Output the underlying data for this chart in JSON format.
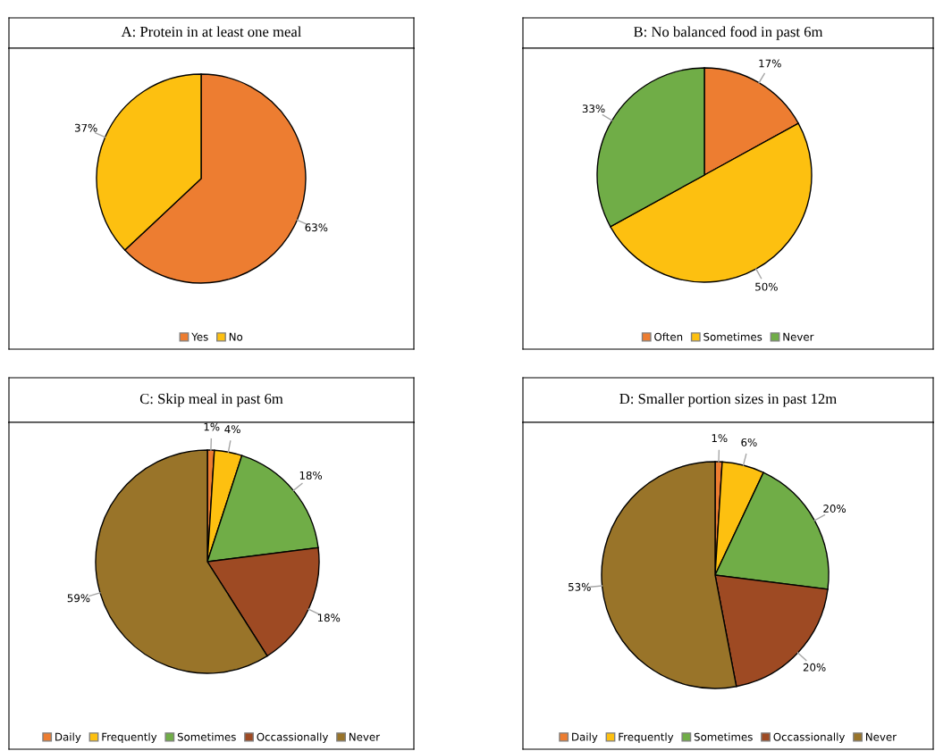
{
  "chart_data": [
    {
      "type": "pie",
      "title": "A: Protein in at least one meal",
      "categories": [
        "Yes",
        "No"
      ],
      "values": [
        63,
        37
      ],
      "colors": [
        "#ed7d31",
        "#fdc010"
      ],
      "value_labels": [
        "63%",
        "37%"
      ],
      "legend": "bottom"
    },
    {
      "type": "pie",
      "title": "B: No balanced food in past 6m",
      "categories": [
        "Often",
        "Sometimes",
        "Never"
      ],
      "values": [
        17,
        50,
        33
      ],
      "colors": [
        "#ed7d31",
        "#fdc010",
        "#70ad47"
      ],
      "value_labels": [
        "17%",
        "50%",
        "33%"
      ],
      "legend": "bottom"
    },
    {
      "type": "pie",
      "title": "C: Skip meal in past 6m",
      "categories": [
        "Daily",
        "Frequently",
        "Sometimes",
        "Occassionally",
        "Never"
      ],
      "values": [
        1,
        4,
        18,
        18,
        59
      ],
      "colors": [
        "#ed7d31",
        "#fdc010",
        "#70ad47",
        "#9e4a23",
        "#997429"
      ],
      "value_labels": [
        "1%",
        "4%",
        "18%",
        "18%",
        "59%"
      ],
      "legend": "bottom"
    },
    {
      "type": "pie",
      "title": "D: Smaller portion sizes in past 12m",
      "categories": [
        "Daily",
        "Frequently",
        "Sometimes",
        "Occassionally",
        "Never"
      ],
      "values": [
        1,
        6,
        20,
        20,
        53
      ],
      "colors": [
        "#ed7d31",
        "#fdc010",
        "#70ad47",
        "#9e4a23",
        "#997429"
      ],
      "value_labels": [
        "1%",
        "6%",
        "20%",
        "20%",
        "53%"
      ],
      "legend": "bottom"
    }
  ]
}
